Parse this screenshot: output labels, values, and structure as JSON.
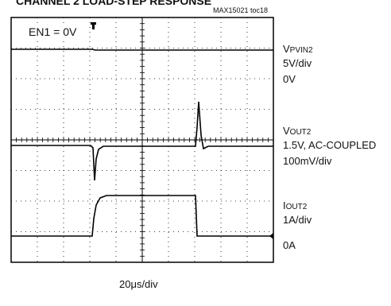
{
  "title": "CHANNEL 2 LOAD-STEP RESPONSE",
  "figure_id": "MAX15021 toc18",
  "annotation": "EN1 = 0V",
  "timebase": "20μs/div",
  "traces": [
    {
      "name": {
        "main": "V",
        "sub": "PVIN2"
      },
      "lines": [
        "5V/div",
        "0V"
      ]
    },
    {
      "name": {
        "main": "V",
        "sub": "OUT2"
      },
      "lines": [
        "1.5V, AC-COUPLED",
        "100mV/div"
      ]
    },
    {
      "name": {
        "main": "I",
        "sub": "OUT2"
      },
      "lines": [
        "1A/div",
        "0A"
      ]
    }
  ]
}
